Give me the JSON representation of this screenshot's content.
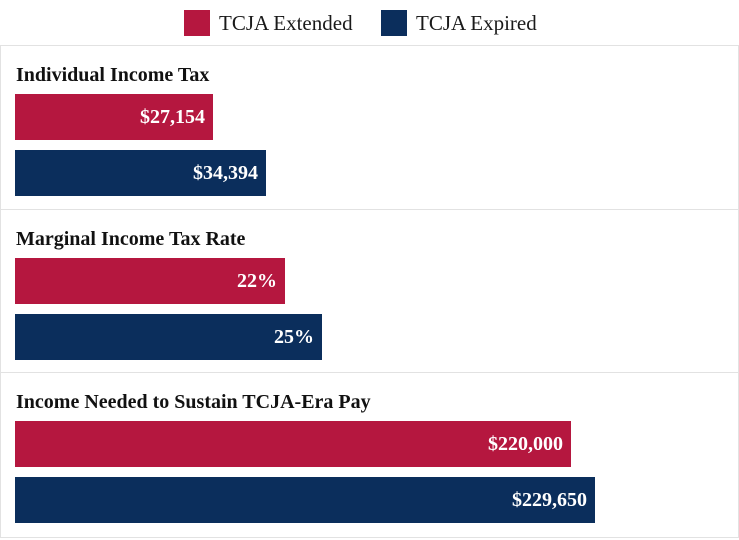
{
  "legend": [
    {
      "label": "TCJA Extended",
      "color": "#b5173f"
    },
    {
      "label": "TCJA Expired",
      "color": "#0b2e5c"
    }
  ],
  "chart_data": [
    {
      "type": "bar",
      "orientation": "horizontal",
      "title": "Individual Income Tax",
      "series": [
        {
          "name": "TCJA Extended",
          "value": 27154,
          "label": "$27,154",
          "color": "#b5173f"
        },
        {
          "name": "TCJA Expired",
          "value": 34394,
          "label": "$34,394",
          "color": "#0b2e5c"
        }
      ],
      "xlim": [
        0,
        96000
      ],
      "grid": false,
      "legend_placement": "top-center"
    },
    {
      "type": "bar",
      "orientation": "horizontal",
      "title": "Marginal Income Tax Rate",
      "series": [
        {
          "name": "TCJA Extended",
          "value": 22,
          "label": "22%",
          "color": "#b5173f"
        },
        {
          "name": "TCJA Expired",
          "value": 25,
          "label": "25%",
          "color": "#0b2e5c"
        }
      ],
      "xlim": [
        0,
        57
      ],
      "grid": false,
      "legend_placement": "top-center"
    },
    {
      "type": "bar",
      "orientation": "horizontal",
      "title": "Income Needed to Sustain TCJA-Era Pay",
      "series": [
        {
          "name": "TCJA Extended",
          "value": 220000,
          "label": "$220,000",
          "color": "#b5173f"
        },
        {
          "name": "TCJA Expired",
          "value": 229650,
          "label": "$229,650",
          "color": "#0b2e5c"
        }
      ],
      "xlim": [
        0,
        277000
      ],
      "grid": false,
      "legend_placement": "top-center"
    }
  ]
}
